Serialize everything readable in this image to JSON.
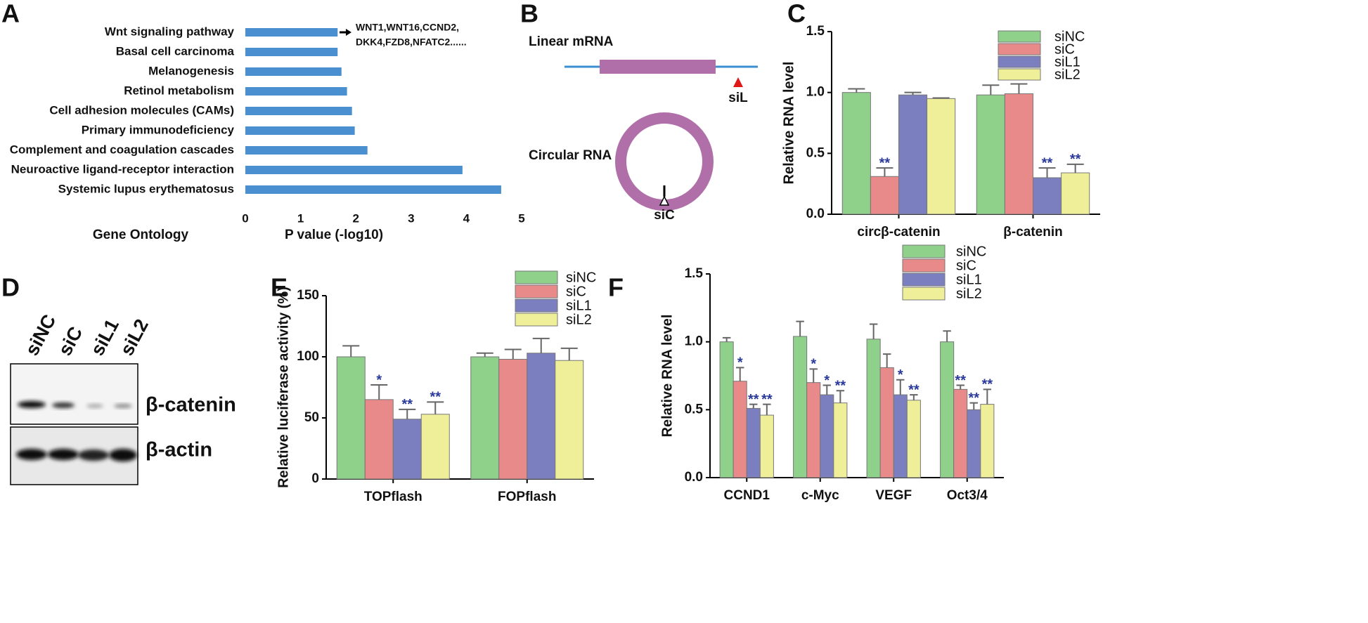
{
  "chart_data": [
    {
      "panel": "A",
      "type": "hbar",
      "categories": [
        "Wnt signaling pathway",
        "Basal cell carcinoma",
        "Melanogenesis",
        "Retinol metabolism",
        "Cell adhesion molecules (CAMs)",
        "Primary immunodeficiency",
        "Complement and coagulation cascades",
        "Neuroactive ligand-receptor interaction",
        "Systemic lupus erythematosus"
      ],
      "values": [
        1.67,
        1.67,
        1.74,
        1.84,
        1.93,
        1.98,
        2.21,
        3.93,
        4.63
      ],
      "color": "#4a90d0",
      "xlim": [
        0,
        5
      ],
      "xticks": [
        0,
        1,
        2,
        3,
        4,
        5
      ],
      "xlabel": "P value (-log10)",
      "ylabel": "Gene Ontology",
      "annotation": [
        "WNT1,WNT16,CCND2,",
        "DKK4,FZD8,NFATC2......"
      ]
    },
    {
      "panel": "C",
      "type": "grouped_bar",
      "categories": [
        "circβ-catenin",
        "β-catenin"
      ],
      "ylabel": "Relative RNA level",
      "ylim": [
        0,
        1.5
      ],
      "yticks": [
        {
          "value": 0,
          "label": "0.0"
        },
        {
          "value": 0.5,
          "label": "0.5"
        },
        {
          "value": 1,
          "label": "1.0"
        },
        {
          "value": 1.5,
          "label": "1.5"
        }
      ],
      "legend": true,
      "series": [
        {
          "name": "siNC",
          "color": "#8fd08b",
          "values": [
            1.0,
            0.98
          ],
          "errors": [
            0.03,
            0.08
          ],
          "labels": [
            null,
            null
          ]
        },
        {
          "name": "siC",
          "color": "#e88a8a",
          "values": [
            0.31,
            0.99
          ],
          "errors": [
            0.07,
            0.08
          ],
          "labels": [
            "**",
            null
          ]
        },
        {
          "name": "siL1",
          "color": "#7b7fc0",
          "values": [
            0.98,
            0.3
          ],
          "errors": [
            0.02,
            0.08
          ],
          "labels": [
            null,
            "**"
          ]
        },
        {
          "name": "siL2",
          "color": "#efef9a",
          "values": [
            0.95,
            0.34
          ],
          "errors": [
            0.005,
            0.07
          ],
          "labels": [
            null,
            "**"
          ]
        }
      ]
    },
    {
      "panel": "E",
      "type": "grouped_bar",
      "categories": [
        "TOPflash",
        "FOPflash"
      ],
      "ylabel": "Relative luciferase activity (%)",
      "ylim": [
        0,
        150
      ],
      "yticks": [
        0,
        50,
        100,
        150
      ],
      "legend": true,
      "series": [
        {
          "name": "siNC",
          "color": "#8fd08b",
          "values": [
            100,
            100
          ],
          "errors": [
            9,
            3
          ],
          "labels": [
            null,
            null
          ]
        },
        {
          "name": "siC",
          "color": "#e88a8a",
          "values": [
            65,
            98
          ],
          "errors": [
            12,
            8
          ],
          "labels": [
            "*",
            null
          ]
        },
        {
          "name": "siL1",
          "color": "#7b7fc0",
          "values": [
            49,
            103
          ],
          "errors": [
            8,
            12
          ],
          "labels": [
            "**",
            null
          ]
        },
        {
          "name": "siL2",
          "color": "#efef9a",
          "values": [
            53,
            97
          ],
          "errors": [
            10,
            10
          ],
          "labels": [
            "**",
            null
          ]
        }
      ]
    },
    {
      "panel": "F",
      "type": "grouped_bar",
      "categories": [
        "CCND1",
        "c-Myc",
        "VEGF",
        "Oct3/4"
      ],
      "ylabel": "Relative RNA level",
      "ylim": [
        0,
        1.5
      ],
      "yticks": [
        {
          "value": 0,
          "label": "0.0"
        },
        {
          "value": 0.5,
          "label": "0.5"
        },
        {
          "value": 1,
          "label": "1.0"
        },
        {
          "value": 1.5,
          "label": "1.5"
        }
      ],
      "legend": true,
      "series": [
        {
          "name": "siNC",
          "color": "#8fd08b",
          "values": [
            1.0,
            1.04,
            1.02,
            1.0
          ],
          "errors": [
            0.03,
            0.11,
            0.11,
            0.08
          ],
          "labels": [
            null,
            null,
            null,
            null
          ]
        },
        {
          "name": "siC",
          "color": "#e88a8a",
          "values": [
            0.71,
            0.7,
            0.81,
            0.65
          ],
          "errors": [
            0.1,
            0.1,
            0.1,
            0.03
          ],
          "labels": [
            "*",
            "*",
            null,
            "**"
          ]
        },
        {
          "name": "siL1",
          "color": "#7b7fc0",
          "values": [
            0.51,
            0.61,
            0.61,
            0.5
          ],
          "errors": [
            0.03,
            0.07,
            0.11,
            0.05
          ],
          "labels": [
            "**",
            "*",
            "*",
            "**"
          ]
        },
        {
          "name": "siL2",
          "color": "#efef9a",
          "values": [
            0.46,
            0.55,
            0.57,
            0.54
          ],
          "errors": [
            0.08,
            0.09,
            0.04,
            0.11
          ],
          "labels": [
            "**",
            "**",
            "**",
            "**"
          ]
        }
      ]
    }
  ],
  "diagram": {
    "panel": "B",
    "linear_label": "Linear mRNA",
    "circular_label": "Circular RNA",
    "sil_label": "siL",
    "sic_label": "siC"
  },
  "blot": {
    "panel": "D",
    "lanes": [
      "siNC",
      "siC",
      "siL1",
      "siL2"
    ],
    "rows": [
      "β-catenin",
      "β-actin"
    ]
  }
}
